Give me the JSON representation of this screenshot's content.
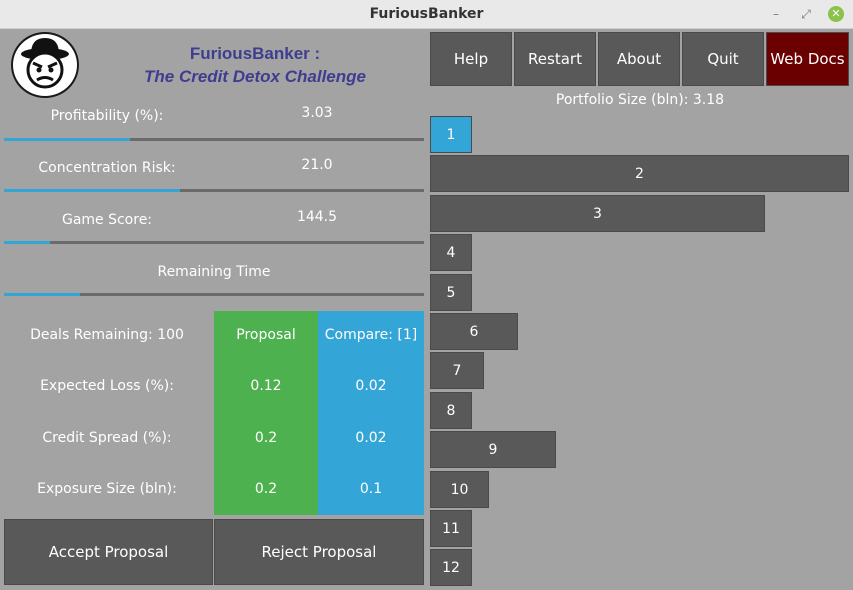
{
  "window": {
    "title": "FuriousBanker",
    "controls": {
      "minimize": "–",
      "maximize": "⤢",
      "close": "✕"
    }
  },
  "app": {
    "title": "FuriousBanker :",
    "subtitle": "The Credit Detox Challenge"
  },
  "stats": {
    "profitability": {
      "label": "Profitability (%):",
      "value": "3.03",
      "level": 0.3
    },
    "concentration": {
      "label": "Concentration Risk:",
      "value": "21.0",
      "level": 0.42
    },
    "score": {
      "label": "Game Score:",
      "value": "144.5",
      "level": 0.11
    },
    "time": {
      "label": "Remaining Time",
      "level": 0.18
    }
  },
  "deal": {
    "deals_remaining": "Deals Remaining: 100",
    "proposal_header": "Proposal",
    "compare_header": "Compare: [1]",
    "rows": [
      {
        "label": "Expected Loss (%):",
        "proposal": "0.12",
        "compare": "0.02"
      },
      {
        "label": "Credit Spread (%):",
        "proposal": "0.2",
        "compare": "0.02"
      },
      {
        "label": "Exposure Size (bln):",
        "proposal": "0.2",
        "compare": "0.1"
      }
    ]
  },
  "actions": {
    "accept": "Accept Proposal",
    "reject": "Reject Proposal"
  },
  "toolbar": {
    "help": "Help",
    "restart": "Restart",
    "about": "About",
    "quit": "Quit",
    "web_docs": "Web Docs"
  },
  "portfolio": {
    "size_label": "Portfolio Size (bln):  3.18",
    "bars": [
      {
        "label": "1",
        "value": 0.1,
        "active": true
      },
      {
        "label": "2",
        "value": 1.0
      },
      {
        "label": "3",
        "value": 0.8
      },
      {
        "label": "4",
        "value": 0.1
      },
      {
        "label": "5",
        "value": 0.1
      },
      {
        "label": "6",
        "value": 0.21
      },
      {
        "label": "7",
        "value": 0.13
      },
      {
        "label": "8",
        "value": 0.1
      },
      {
        "label": "9",
        "value": 0.3
      },
      {
        "label": "10",
        "value": 0.14
      },
      {
        "label": "11",
        "value": 0.1
      },
      {
        "label": "12",
        "value": 0.1
      }
    ]
  }
}
